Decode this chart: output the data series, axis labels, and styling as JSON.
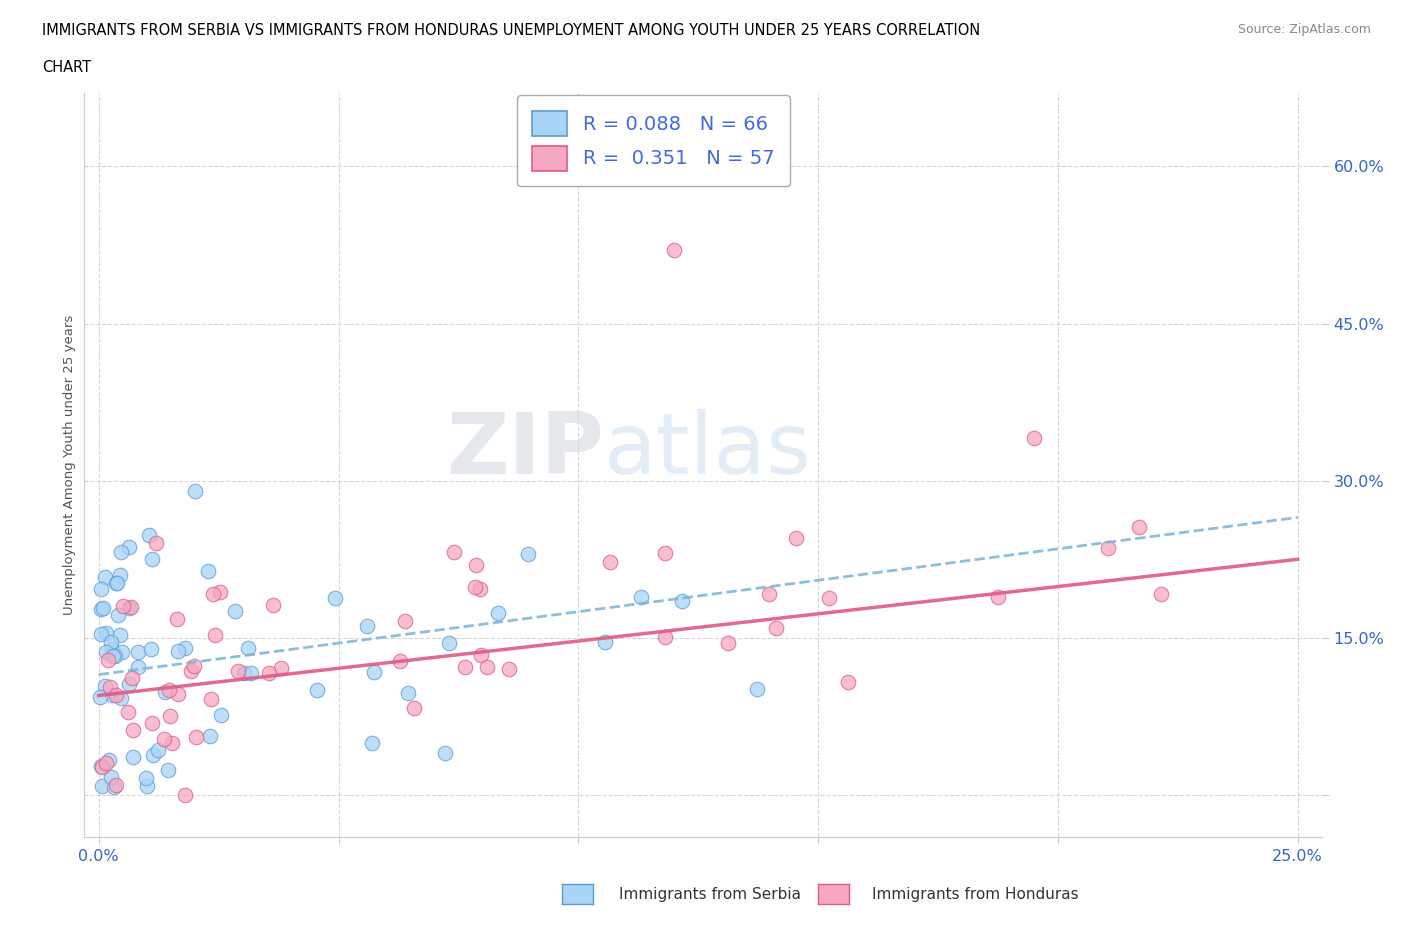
{
  "title_line1": "IMMIGRANTS FROM SERBIA VS IMMIGRANTS FROM HONDURAS UNEMPLOYMENT AMONG YOUTH UNDER 25 YEARS CORRELATION",
  "title_line2": "CHART",
  "source": "Source: ZipAtlas.com",
  "ylabel": "Unemployment Among Youth under 25 years",
  "xlim": [
    -0.003,
    0.255
  ],
  "ylim": [
    -0.04,
    0.67
  ],
  "xticks": [
    0.0,
    0.05,
    0.1,
    0.15,
    0.2,
    0.25
  ],
  "xtick_labels": [
    "0.0%",
    "",
    "",
    "",
    "",
    "25.0%"
  ],
  "yticks": [
    0.0,
    0.15,
    0.3,
    0.45,
    0.6
  ],
  "ytick_labels": [
    "",
    "15.0%",
    "30.0%",
    "45.0%",
    "60.0%"
  ],
  "grid_color": "#cccccc",
  "background_color": "#ffffff",
  "serbia_color": "#a8d4f5",
  "serbia_edge_color": "#5b9bd5",
  "honduras_color": "#f5a8c0",
  "honduras_edge_color": "#e05a8a",
  "serbia_R": 0.088,
  "serbia_N": 66,
  "honduras_R": 0.351,
  "honduras_N": 57,
  "legend_R_color": "#4169E1",
  "serbia_trend_color": "#7ab3d8",
  "honduras_trend_color": "#e05a82",
  "watermark_zip": "ZIP",
  "watermark_atlas": "atlas"
}
